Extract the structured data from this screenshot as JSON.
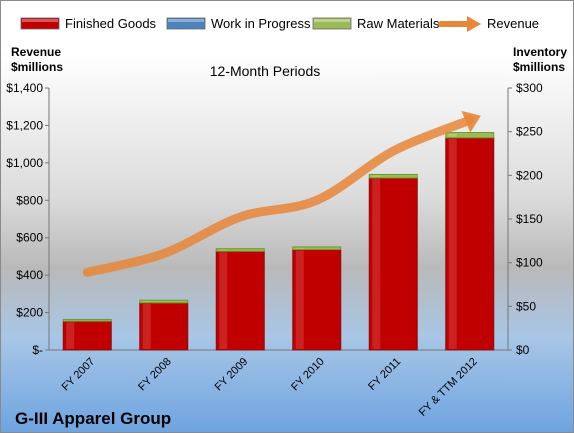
{
  "chart_data": {
    "type": "bar",
    "title": "12-Month Periods",
    "company": "G-III Apparel Group",
    "left_axis_label_line1": "Revenue",
    "left_axis_label_line2": "$millions",
    "right_axis_label_line1": "Inventory",
    "right_axis_label_line2": "$millions",
    "categories": [
      "FY 2007",
      "FY 2008",
      "FY 2009",
      "FY 2010",
      "FY 2011",
      "FY & TTM 2012"
    ],
    "inventory_series": [
      {
        "name": "Finished Goods",
        "color": "#c00000",
        "values": [
          33,
          54,
          113,
          115,
          197,
          243
        ]
      },
      {
        "name": "Work in Progress",
        "color": "#4f81bd",
        "values": [
          0,
          0,
          0,
          0,
          0,
          0
        ]
      },
      {
        "name": "Raw Materials",
        "color": "#9bbb59",
        "values": [
          2,
          3,
          3,
          3,
          4,
          6
        ]
      }
    ],
    "revenue_series": {
      "name": "Revenue",
      "color": "#e8863a",
      "values": [
        415,
        515,
        711,
        800,
        1063,
        1228
      ]
    },
    "left_axis": {
      "ylim": [
        0,
        1400
      ],
      "ticks": [
        "$-",
        "$200",
        "$400",
        "$600",
        "$800",
        "$1,000",
        "$1,200",
        "$1,400"
      ]
    },
    "right_axis": {
      "ylim": [
        0,
        300
      ],
      "ticks": [
        "$0",
        "$50",
        "$100",
        "$150",
        "$200",
        "$250",
        "$300"
      ]
    },
    "legend_position": "top"
  }
}
